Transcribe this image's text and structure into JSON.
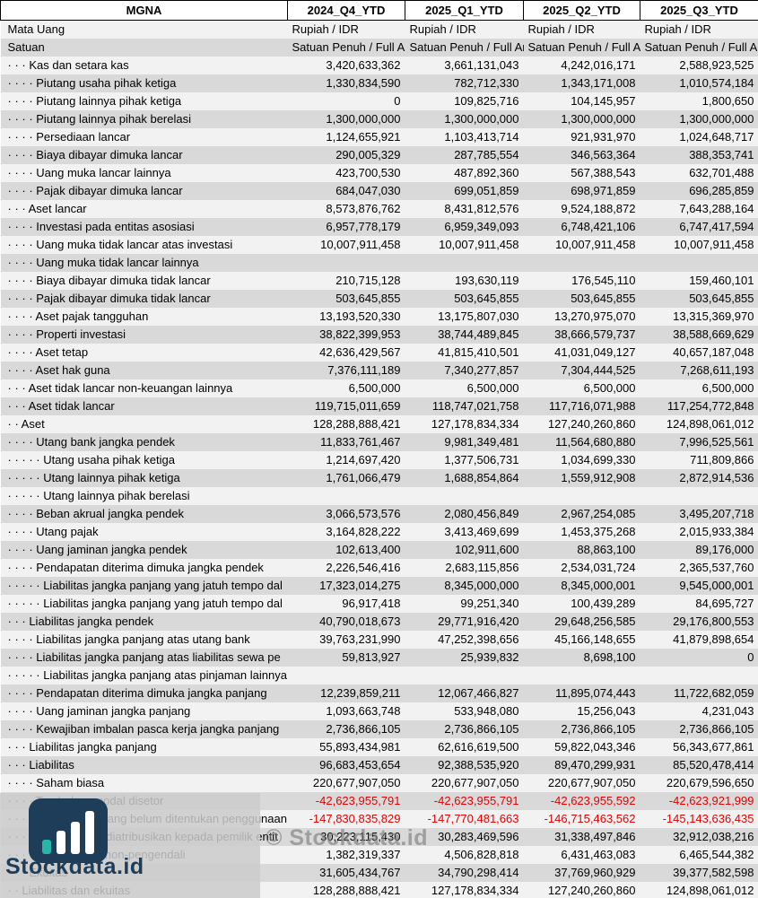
{
  "company": {
    "ticker": "MGNA"
  },
  "table": {
    "quarters": [
      "2024_Q4_YTD",
      "2025_Q1_YTD",
      "2025_Q2_YTD",
      "2025_Q3_YTD"
    ],
    "currency": {
      "label": "Mata Uang",
      "values": [
        "Rupiah / IDR",
        "Rupiah / IDR",
        "Rupiah / IDR",
        "Rupiah / IDR"
      ]
    },
    "unit": {
      "label": "Satuan",
      "values": [
        "Satuan Penuh / Full Amount",
        "Satuan Penuh / Full Amount",
        "Satuan Penuh / Full Amount",
        "Satuan Penuh / Full Amount"
      ]
    },
    "rows": [
      {
        "label": "· · · Kas dan setara kas",
        "values": [
          "3,420,633,362",
          "3,661,131,043",
          "4,242,016,171",
          "2,588,923,525"
        ]
      },
      {
        "label": "· · · · Piutang usaha pihak ketiga",
        "values": [
          "1,330,834,590",
          "782,712,330",
          "1,343,171,008",
          "1,010,574,184"
        ]
      },
      {
        "label": "· · · · Piutang lainnya pihak ketiga",
        "values": [
          "0",
          "109,825,716",
          "104,145,957",
          "1,800,650"
        ]
      },
      {
        "label": "· · · · Piutang lainnya pihak berelasi",
        "values": [
          "1,300,000,000",
          "1,300,000,000",
          "1,300,000,000",
          "1,300,000,000"
        ]
      },
      {
        "label": "· · · · Persediaan lancar",
        "values": [
          "1,124,655,921",
          "1,103,413,714",
          "921,931,970",
          "1,024,648,717"
        ]
      },
      {
        "label": "· · · · Biaya dibayar dimuka lancar",
        "values": [
          "290,005,329",
          "287,785,554",
          "346,563,364",
          "388,353,741"
        ]
      },
      {
        "label": "· · · · Uang muka lancar lainnya",
        "values": [
          "423,700,530",
          "487,892,360",
          "567,388,543",
          "632,701,488"
        ]
      },
      {
        "label": "· · · · Pajak dibayar dimuka lancar",
        "values": [
          "684,047,030",
          "699,051,859",
          "698,971,859",
          "696,285,859"
        ]
      },
      {
        "label": "· · · Aset lancar",
        "values": [
          "8,573,876,762",
          "8,431,812,576",
          "9,524,188,872",
          "7,643,288,164"
        ]
      },
      {
        "label": "· · · · Investasi pada entitas asosiasi",
        "values": [
          "6,957,778,179",
          "6,959,349,093",
          "6,748,421,106",
          "6,747,417,594"
        ]
      },
      {
        "label": "· · · · Uang muka tidak lancar atas investasi",
        "values": [
          "10,007,911,458",
          "10,007,911,458",
          "10,007,911,458",
          "10,007,911,458"
        ]
      },
      {
        "label": "· · · · Uang muka tidak lancar lainnya",
        "values": [
          "",
          "",
          "",
          ""
        ]
      },
      {
        "label": "· · · · Biaya dibayar dimuka tidak lancar",
        "values": [
          "210,715,128",
          "193,630,119",
          "176,545,110",
          "159,460,101"
        ]
      },
      {
        "label": "· · · · Pajak dibayar dimuka tidak lancar",
        "values": [
          "503,645,855",
          "503,645,855",
          "503,645,855",
          "503,645,855"
        ]
      },
      {
        "label": "· · · · Aset pajak tangguhan",
        "values": [
          "13,193,520,330",
          "13,175,807,030",
          "13,270,975,070",
          "13,315,369,970"
        ]
      },
      {
        "label": "· · · · Properti investasi",
        "values": [
          "38,822,399,953",
          "38,744,489,845",
          "38,666,579,737",
          "38,588,669,629"
        ]
      },
      {
        "label": "· · · · Aset tetap",
        "values": [
          "42,636,429,567",
          "41,815,410,501",
          "41,031,049,127",
          "40,657,187,048"
        ]
      },
      {
        "label": "· · · · Aset hak guna",
        "values": [
          "7,376,111,189",
          "7,340,277,857",
          "7,304,444,525",
          "7,268,611,193"
        ]
      },
      {
        "label": "· · · Aset tidak lancar non-keuangan lainnya",
        "values": [
          "6,500,000",
          "6,500,000",
          "6,500,000",
          "6,500,000"
        ]
      },
      {
        "label": "· · · Aset tidak lancar",
        "values": [
          "119,715,011,659",
          "118,747,021,758",
          "117,716,071,988",
          "117,254,772,848"
        ]
      },
      {
        "label": "· · Aset",
        "values": [
          "128,288,888,421",
          "127,178,834,334",
          "127,240,260,860",
          "124,898,061,012"
        ]
      },
      {
        "label": "· · · · Utang bank jangka pendek",
        "values": [
          "11,833,761,467",
          "9,981,349,481",
          "11,564,680,880",
          "7,996,525,561"
        ]
      },
      {
        "label": "· · · · · Utang usaha pihak ketiga",
        "values": [
          "1,214,697,420",
          "1,377,506,731",
          "1,034,699,330",
          "711,809,866"
        ]
      },
      {
        "label": "· · · · · Utang lainnya pihak ketiga",
        "values": [
          "1,761,066,479",
          "1,688,854,864",
          "1,559,912,908",
          "2,872,914,536"
        ]
      },
      {
        "label": "· · · · · Utang lainnya pihak berelasi",
        "values": [
          "",
          "",
          "",
          ""
        ]
      },
      {
        "label": "· · · · Beban akrual jangka pendek",
        "values": [
          "3,066,573,576",
          "2,080,456,849",
          "2,967,254,085",
          "3,495,207,718"
        ]
      },
      {
        "label": "· · · · Utang pajak",
        "values": [
          "3,164,828,222",
          "3,413,469,699",
          "1,453,375,268",
          "2,015,933,384"
        ]
      },
      {
        "label": "· · · · Uang jaminan jangka pendek",
        "values": [
          "102,613,400",
          "102,911,600",
          "88,863,100",
          "89,176,000"
        ]
      },
      {
        "label": "· · · · Pendapatan diterima dimuka jangka pendek",
        "values": [
          "2,226,546,416",
          "2,683,115,856",
          "2,534,031,724",
          "2,365,537,760"
        ]
      },
      {
        "label": "· · · · · Liabilitas jangka panjang yang jatuh tempo dal",
        "values": [
          "17,323,014,275",
          "8,345,000,000",
          "8,345,000,001",
          "9,545,000,001"
        ]
      },
      {
        "label": "· · · · · Liabilitas jangka panjang yang jatuh tempo dal",
        "values": [
          "96,917,418",
          "99,251,340",
          "100,439,289",
          "84,695,727"
        ]
      },
      {
        "label": "· · · Liabilitas jangka pendek",
        "values": [
          "40,790,018,673",
          "29,771,916,420",
          "29,648,256,585",
          "29,176,800,553"
        ]
      },
      {
        "label": "· · · · Liabilitas jangka panjang atas utang bank",
        "values": [
          "39,763,231,990",
          "47,252,398,656",
          "45,166,148,655",
          "41,879,898,654"
        ]
      },
      {
        "label": "· · · · Liabilitas jangka panjang atas liabilitas sewa pe",
        "values": [
          "59,813,927",
          "25,939,832",
          "8,698,100",
          "0"
        ]
      },
      {
        "label": "· · · · · Liabilitas jangka panjang atas pinjaman lainnya",
        "values": [
          "",
          "",
          "",
          ""
        ]
      },
      {
        "label": "· · · · Pendapatan diterima dimuka jangka panjang",
        "values": [
          "12,239,859,211",
          "12,067,466,827",
          "11,895,074,443",
          "11,722,682,059"
        ]
      },
      {
        "label": "· · · · Uang jaminan jangka panjang",
        "values": [
          "1,093,663,748",
          "533,948,080",
          "15,256,043",
          "4,231,043"
        ]
      },
      {
        "label": "· · · · Kewajiban imbalan pasca kerja jangka panjang",
        "values": [
          "2,736,866,105",
          "2,736,866,105",
          "2,736,866,105",
          "2,736,866,105"
        ]
      },
      {
        "label": "· · · Liabilitas jangka panjang",
        "values": [
          "55,893,434,981",
          "62,616,619,500",
          "59,822,043,346",
          "56,343,677,861"
        ]
      },
      {
        "label": "· · · Liabilitas",
        "values": [
          "96,683,453,654",
          "92,388,535,920",
          "89,470,299,931",
          "85,520,478,414"
        ]
      },
      {
        "label": "· · · · Saham biasa",
        "values": [
          "220,677,907,050",
          "220,677,907,050",
          "220,677,907,050",
          "220,679,596,650"
        ]
      },
      {
        "label": "· · · · Tambahan modal disetor",
        "values": [
          "-42,623,955,791",
          "-42,623,955,791",
          "-42,623,955,592",
          "-42,623,921,999"
        ]
      },
      {
        "label": "· · · · · Saldo laba yang belum ditentukan penggunaan",
        "values": [
          "-147,830,835,829",
          "-147,770,481,663",
          "-146,715,463,562",
          "-145,143,636,435"
        ]
      },
      {
        "label": "· · · · Ekuitas yang diatribusikan kepada pemilik entit",
        "values": [
          "30,223,115,430",
          "30,283,469,596",
          "31,338,497,846",
          "32,912,038,216"
        ]
      },
      {
        "label": "· · · · Kepentingan non-pengendali",
        "values": [
          "1,382,319,337",
          "4,506,828,818",
          "6,431,463,083",
          "6,465,544,382"
        ]
      },
      {
        "label": "· · · Ekuitas",
        "values": [
          "31,605,434,767",
          "34,790,298,414",
          "37,769,960,929",
          "39,377,582,598"
        ]
      },
      {
        "label": "· · Liabilitas dan ekuitas",
        "values": [
          "128,288,888,421",
          "127,178,834,334",
          "127,240,260,860",
          "124,898,061,012"
        ]
      }
    ]
  },
  "watermark": {
    "logo_text": "Stockdata.id",
    "copyright_text": "© Stockdata.id",
    "logo_icon": "bar-chart-icon"
  },
  "colors": {
    "stripe_light": "#f2f2f2",
    "stripe_dark": "#d9d9d9",
    "negative_value": "#e60000",
    "logo_navy": "#1d3d59",
    "logo_teal": "#27b5a5",
    "watermark_gray": "#808080"
  }
}
